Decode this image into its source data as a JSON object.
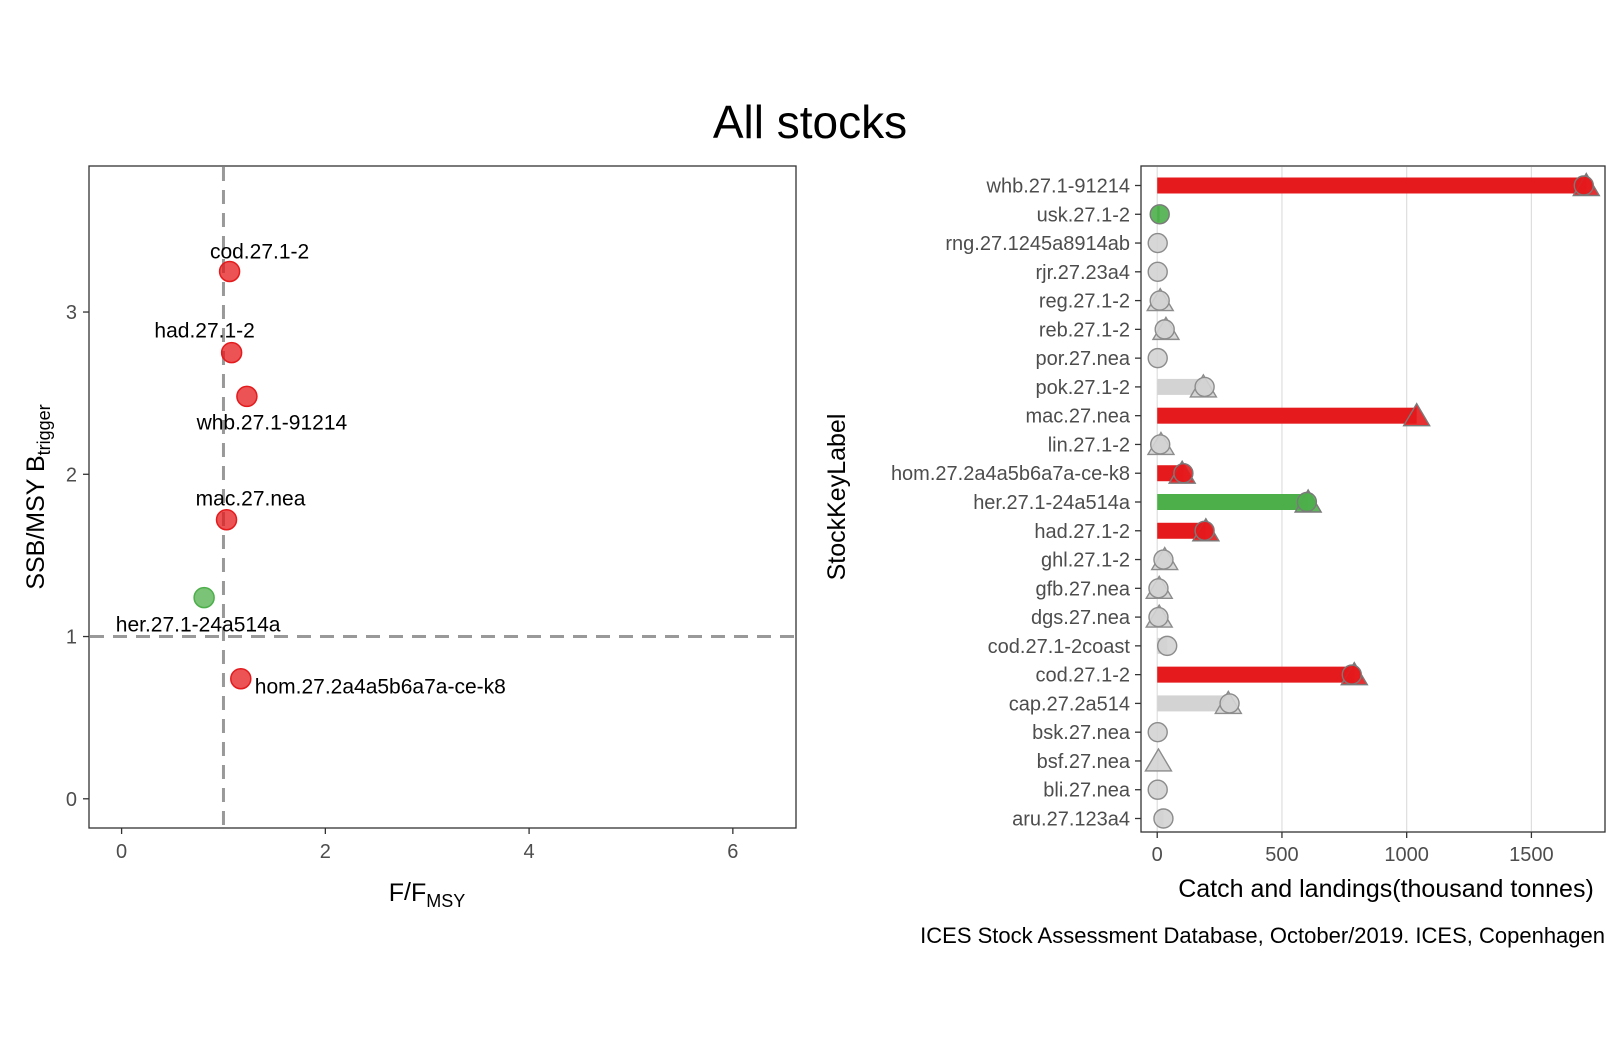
{
  "title": "All stocks",
  "caption": "ICES Stock Assessment Database, October/2019. ICES, Copenhagen",
  "colors": {
    "red": "#e41a1c",
    "green": "#4daf4a",
    "grey": "#d3d3d3",
    "grey_stroke": "#8c8c8c",
    "reference_line": "#999999"
  },
  "chart_data": [
    {
      "type": "scatter",
      "title": "",
      "xlabel_main": "F",
      "xlabel_divider": "/",
      "xlabel_sub_base": "F",
      "xlabel_subscript": "MSY",
      "ylabel_main": "SSB",
      "ylabel_divider": "/",
      "ylabel_rest": "MSY B",
      "ylabel_subscript": "trigger",
      "xlim": [
        -0.32,
        6.62
      ],
      "ylim": [
        -0.18,
        3.9
      ],
      "xticks": [
        0,
        2,
        4,
        6
      ],
      "yticks": [
        0,
        1,
        2,
        3
      ],
      "reference_lines": {
        "x": 1,
        "y": 1
      },
      "points": [
        {
          "label": "cod.27.1-2",
          "x": 1.06,
          "y": 3.25,
          "color": "#e41a1c",
          "label_dx": 30,
          "label_dy": -20,
          "anchor": "middle"
        },
        {
          "label": "had.27.1-2",
          "x": 1.08,
          "y": 2.75,
          "color": "#e41a1c",
          "label_dx": -27,
          "label_dy": -22,
          "anchor": "middle"
        },
        {
          "label": "whb.27.1-91214",
          "x": 1.23,
          "y": 2.48,
          "color": "#e41a1c",
          "label_dx": 25,
          "label_dy": 26,
          "anchor": "middle"
        },
        {
          "label": "mac.27.nea",
          "x": 1.03,
          "y": 1.72,
          "color": "#e41a1c",
          "label_dx": 24,
          "label_dy": -21,
          "anchor": "middle"
        },
        {
          "label": "her.27.1-24a514a",
          "x": 0.81,
          "y": 1.24,
          "color": "#4daf4a",
          "label_dx": -6,
          "label_dy": 27,
          "anchor": "middle"
        },
        {
          "label": "hom.27.2a4a5b6a7a-ce-k8",
          "x": 1.17,
          "y": 0.74,
          "color": "#e41a1c",
          "label_dx": 14,
          "label_dy": 8,
          "anchor": "start"
        }
      ]
    },
    {
      "type": "bar",
      "orientation": "horizontal",
      "title": "",
      "xlabel": "Catch and landings(thousand tonnes)",
      "ylabel": "StockKeyLabel",
      "xlim": [
        -65,
        1795
      ],
      "xticks": [
        0,
        500,
        1000,
        1500
      ],
      "legend": "none",
      "categories": [
        "whb.27.1-91214",
        "usk.27.1-2",
        "rng.27.1245a8914ab",
        "rjr.27.23a4",
        "reg.27.1-2",
        "reb.27.1-2",
        "por.27.nea",
        "pok.27.1-2",
        "mac.27.nea",
        "lin.27.1-2",
        "hom.27.2a4a5b6a7a-ce-k8",
        "her.27.1-24a514a",
        "had.27.1-2",
        "ghl.27.1-2",
        "gfb.27.nea",
        "dgs.27.nea",
        "cod.27.1-2coast",
        "cod.27.1-2",
        "cap.27.2a514",
        "bsk.27.nea",
        "bsf.27.nea",
        "bli.27.nea",
        "aru.27.123a4"
      ],
      "catches": [
        1710,
        10,
        2,
        2,
        10,
        30,
        2,
        190,
        null,
        12,
        105,
        600,
        190,
        25,
        5,
        5,
        40,
        780,
        290,
        2,
        null,
        2,
        25
      ],
      "landings": [
        1720,
        null,
        null,
        null,
        12,
        35,
        null,
        185,
        1040,
        15,
        100,
        605,
        195,
        30,
        8,
        8,
        null,
        790,
        285,
        null,
        5,
        null,
        null
      ],
      "bar_colors": [
        "#e41a1c",
        "#4daf4a",
        "#d3d3d3",
        "#d3d3d3",
        "#d3d3d3",
        "#d3d3d3",
        "#d3d3d3",
        "#d3d3d3",
        "#e41a1c",
        "#d3d3d3",
        "#e41a1c",
        "#4daf4a",
        "#e41a1c",
        "#d3d3d3",
        "#d3d3d3",
        "#d3d3d3",
        "#d3d3d3",
        "#e41a1c",
        "#d3d3d3",
        "#d3d3d3",
        "#d3d3d3",
        "#d3d3d3",
        "#d3d3d3"
      ]
    }
  ]
}
